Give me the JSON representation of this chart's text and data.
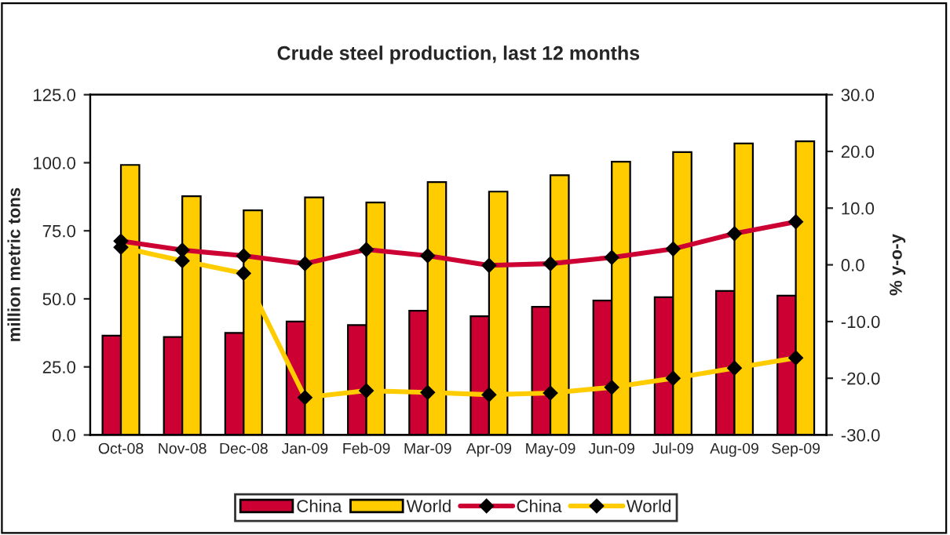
{
  "chart_data": {
    "type": "bar",
    "title": "Crude steel production, last 12 months",
    "ylabel": "million metric tons",
    "y2label": "% y-o-y",
    "categories": [
      "Oct-08",
      "Nov-08",
      "Dec-08",
      "Jan-09",
      "Feb-09",
      "Mar-09",
      "Apr-09",
      "May-09",
      "Jun-09",
      "Jul-09",
      "Aug-09",
      "Sep-09"
    ],
    "series": [
      {
        "name": "China",
        "color": "#cc0033",
        "values": [
          36.5,
          36.0,
          37.5,
          41.7,
          40.4,
          45.6,
          43.6,
          47.1,
          49.4,
          50.6,
          52.9,
          51.2
        ]
      },
      {
        "name": "World",
        "color": "#ffcc00",
        "values": [
          99.2,
          87.7,
          82.5,
          87.3,
          85.4,
          92.9,
          89.4,
          95.4,
          100.4,
          103.9,
          107.1,
          107.9
        ]
      },
      {
        "name": "China",
        "type": "line",
        "axis": "y2",
        "color": "#cc0033",
        "values": [
          4.2,
          2.6,
          1.6,
          0.2,
          2.7,
          1.6,
          -0.1,
          0.2,
          1.3,
          2.8,
          5.5,
          7.6
        ]
      },
      {
        "name": "World",
        "type": "line",
        "axis": "y2",
        "color": "#ffcc00",
        "values": [
          3.1,
          0.7,
          -1.5,
          -23.4,
          -22.2,
          -22.5,
          -22.9,
          -22.6,
          -21.6,
          -20.0,
          -18.2,
          -16.4
        ]
      }
    ],
    "ylim": [
      0,
      125
    ],
    "yticks": [
      {
        "value": 0,
        "label": "0.0"
      },
      {
        "value": 25,
        "label": "25.0"
      },
      {
        "value": 50,
        "label": "50.0"
      },
      {
        "value": 75,
        "label": "75.0"
      },
      {
        "value": 100,
        "label": "100.0"
      },
      {
        "value": 125,
        "label": "125.0"
      }
    ],
    "y2lim": [
      -30,
      30
    ],
    "y2ticks": [
      {
        "value": -30,
        "label": "-30.0"
      },
      {
        "value": -20,
        "label": "-20.0"
      },
      {
        "value": -10,
        "label": "-10.0"
      },
      {
        "value": 0,
        "label": "0.0"
      },
      {
        "value": 10,
        "label": "10.0"
      },
      {
        "value": 20,
        "label": "20.0"
      },
      {
        "value": 30,
        "label": "30.0"
      }
    ],
    "marker": "diamond",
    "line_style": "solid",
    "legend": "bottom",
    "grid": false
  }
}
